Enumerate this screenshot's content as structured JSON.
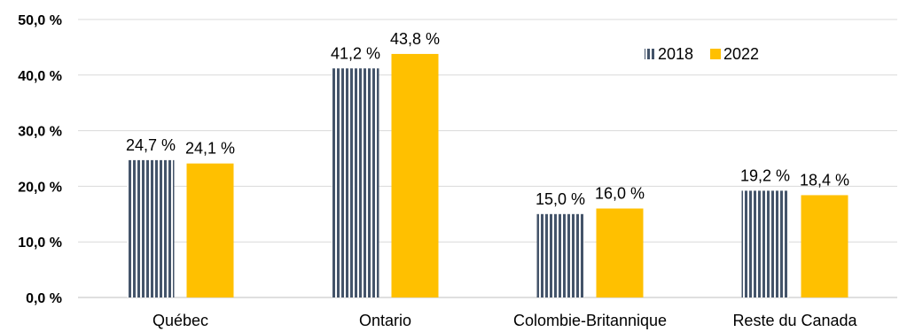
{
  "chart_data": {
    "type": "bar",
    "title": "",
    "xlabel": "",
    "ylabel": "",
    "categories": [
      "Québec",
      "Ontario",
      "Colombie-Britannique",
      "Reste du Canada"
    ],
    "series": [
      {
        "name": "2018",
        "values": [
          24.7,
          41.2,
          15.0,
          19.2
        ],
        "labels": [
          "24,7 %",
          "41,2 %",
          "15,0 %",
          "19,2 %"
        ],
        "color": "#44546a",
        "pattern": "vertical-stripes"
      },
      {
        "name": "2022",
        "values": [
          24.1,
          43.8,
          16.0,
          18.4
        ],
        "labels": [
          "24,1 %",
          "43,8 %",
          "16,0 %",
          "18,4 %"
        ],
        "color": "#ffc000",
        "pattern": "solid"
      }
    ],
    "ylim": [
      0,
      50
    ],
    "yticks": [
      0,
      10,
      20,
      30,
      40,
      50
    ],
    "ytick_labels": [
      "0,0 %",
      "10,0 %",
      "20,0 %",
      "30,0 %",
      "40,0 %",
      "50,0 %"
    ],
    "grid": true,
    "legend_position": "top-right"
  }
}
